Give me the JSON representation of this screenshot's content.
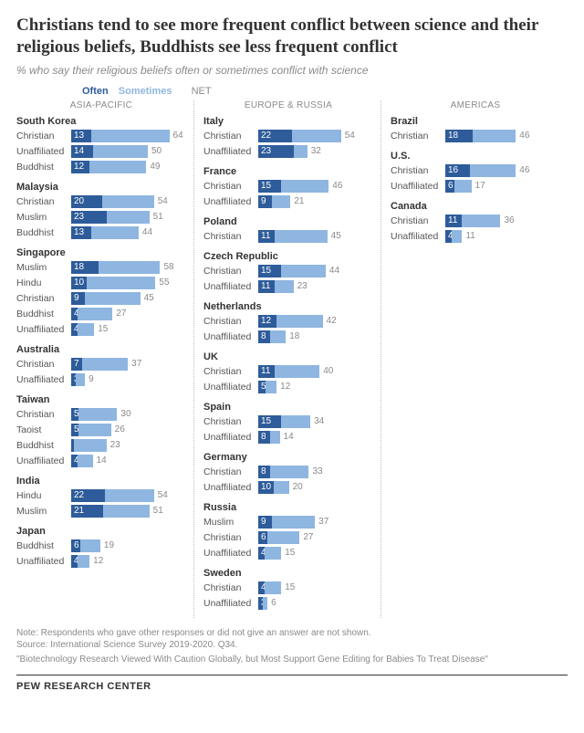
{
  "title": "Christians tend to see more frequent conflict between science and their religious beliefs, Buddhists see less frequent conflict",
  "subtitle": "% who say their religious beliefs often or sometimes conflict with science",
  "legend": {
    "often": "Often",
    "sometimes": "Sometimes",
    "net": "NET"
  },
  "colors": {
    "often": "#2e5c9a",
    "sometimes": "#8fb6e0",
    "net_text": "#8a8a8a",
    "background": "#ffffff"
  },
  "regions": [
    {
      "name": "ASIA-PACIFIC",
      "countries": [
        {
          "name": "South Korea",
          "rows": [
            {
              "label": "Christian",
              "often": 13,
              "sometimes": 51,
              "net": 64
            },
            {
              "label": "Unaffiliated",
              "often": 14,
              "sometimes": 36,
              "net": 50
            },
            {
              "label": "Buddhist",
              "often": 12,
              "sometimes": 37,
              "net": 49
            }
          ]
        },
        {
          "name": "Malaysia",
          "rows": [
            {
              "label": "Christian",
              "often": 20,
              "sometimes": 34,
              "net": 54
            },
            {
              "label": "Muslim",
              "often": 23,
              "sometimes": 28,
              "net": 51
            },
            {
              "label": "Buddhist",
              "often": 13,
              "sometimes": 31,
              "net": 44
            }
          ]
        },
        {
          "name": "Singapore",
          "rows": [
            {
              "label": "Muslim",
              "often": 18,
              "sometimes": 40,
              "net": 58
            },
            {
              "label": "Hindu",
              "often": 10,
              "sometimes": 45,
              "net": 55
            },
            {
              "label": "Christian",
              "often": 9,
              "sometimes": 36,
              "net": 45
            },
            {
              "label": "Buddhist",
              "often": 4,
              "sometimes": 23,
              "net": 27
            },
            {
              "label": "Unaffiliated",
              "often": 4,
              "sometimes": 11,
              "net": 15
            }
          ]
        },
        {
          "name": "Australia",
          "rows": [
            {
              "label": "Christian",
              "often": 7,
              "sometimes": 30,
              "net": 37
            },
            {
              "label": "Unaffiliated",
              "often": 3,
              "sometimes": 6,
              "net": 9
            }
          ]
        },
        {
          "name": "Taiwan",
          "rows": [
            {
              "label": "Christian",
              "often": 5,
              "sometimes": 25,
              "net": 30
            },
            {
              "label": "Taoist",
              "often": 5,
              "sometimes": 21,
              "net": 26
            },
            {
              "label": "Buddhist",
              "often": 2,
              "sometimes": 21,
              "net": 23
            },
            {
              "label": "Unaffiliated",
              "often": 4,
              "sometimes": 10,
              "net": 14
            }
          ]
        },
        {
          "name": "India",
          "rows": [
            {
              "label": "Hindu",
              "often": 22,
              "sometimes": 32,
              "net": 54
            },
            {
              "label": "Muslim",
              "often": 21,
              "sometimes": 30,
              "net": 51
            }
          ]
        },
        {
          "name": "Japan",
          "rows": [
            {
              "label": "Buddhist",
              "often": 6,
              "sometimes": 13,
              "net": 19
            },
            {
              "label": "Unaffiliated",
              "often": 4,
              "sometimes": 8,
              "net": 12
            }
          ]
        }
      ]
    },
    {
      "name": "EUROPE & RUSSIA",
      "countries": [
        {
          "name": "Italy",
          "rows": [
            {
              "label": "Christian",
              "often": 22,
              "sometimes": 32,
              "net": 54
            },
            {
              "label": "Unaffiliated",
              "often": 23,
              "sometimes": 9,
              "net": 32
            }
          ]
        },
        {
          "name": "France",
          "rows": [
            {
              "label": "Christian",
              "often": 15,
              "sometimes": 31,
              "net": 46
            },
            {
              "label": "Unaffiliated",
              "often": 9,
              "sometimes": 12,
              "net": 21
            }
          ]
        },
        {
          "name": "Poland",
          "rows": [
            {
              "label": "Christian",
              "often": 11,
              "sometimes": 34,
              "net": 45
            }
          ]
        },
        {
          "name": "Czech Republic",
          "rows": [
            {
              "label": "Christian",
              "often": 15,
              "sometimes": 29,
              "net": 44
            },
            {
              "label": "Unaffiliated",
              "often": 11,
              "sometimes": 12,
              "net": 23
            }
          ]
        },
        {
          "name": "Netherlands",
          "rows": [
            {
              "label": "Christian",
              "often": 12,
              "sometimes": 30,
              "net": 42
            },
            {
              "label": "Unaffiliated",
              "often": 8,
              "sometimes": 10,
              "net": 18
            }
          ]
        },
        {
          "name": "UK",
          "rows": [
            {
              "label": "Christian",
              "often": 11,
              "sometimes": 29,
              "net": 40
            },
            {
              "label": "Unaffiliated",
              "often": 5,
              "sometimes": 7,
              "net": 12
            }
          ]
        },
        {
          "name": "Spain",
          "rows": [
            {
              "label": "Christian",
              "often": 15,
              "sometimes": 19,
              "net": 34
            },
            {
              "label": "Unaffiliated",
              "often": 8,
              "sometimes": 6,
              "net": 14
            }
          ]
        },
        {
          "name": "Germany",
          "rows": [
            {
              "label": "Christian",
              "often": 8,
              "sometimes": 25,
              "net": 33
            },
            {
              "label": "Unaffiliated",
              "often": 10,
              "sometimes": 10,
              "net": 20
            }
          ]
        },
        {
          "name": "Russia",
          "rows": [
            {
              "label": "Muslim",
              "often": 9,
              "sometimes": 28,
              "net": 37
            },
            {
              "label": "Christian",
              "often": 6,
              "sometimes": 21,
              "net": 27
            },
            {
              "label": "Unaffiliated",
              "often": 4,
              "sometimes": 11,
              "net": 15
            }
          ]
        },
        {
          "name": "Sweden",
          "rows": [
            {
              "label": "Christian",
              "often": 4,
              "sometimes": 11,
              "net": 15
            },
            {
              "label": "Unaffiliated",
              "often": 3,
              "sometimes": 3,
              "net": 6
            }
          ]
        }
      ]
    },
    {
      "name": "AMERICAS",
      "countries": [
        {
          "name": "Brazil",
          "rows": [
            {
              "label": "Christian",
              "often": 18,
              "sometimes": 28,
              "net": 46
            }
          ]
        },
        {
          "name": "U.S.",
          "rows": [
            {
              "label": "Christian",
              "often": 16,
              "sometimes": 30,
              "net": 46
            },
            {
              "label": "Unaffiliated",
              "often": 6,
              "sometimes": 11,
              "net": 17
            }
          ]
        },
        {
          "name": "Canada",
          "rows": [
            {
              "label": "Christian",
              "often": 11,
              "sometimes": 25,
              "net": 36
            },
            {
              "label": "Unaffiliated",
              "often": 4,
              "sometimes": 7,
              "net": 11
            }
          ]
        }
      ]
    }
  ],
  "chart": {
    "scale_max": 75
  },
  "footnotes": {
    "note": "Note: Respondents who gave other responses or did not give an answer are not shown.",
    "source": "Source: International Science Survey 2019-2020. Q34.",
    "quote": "\"Biotechnology Research Viewed With Caution Globally, but Most Support Gene Editing for Babies To Treat Disease\""
  },
  "logo": "PEW RESEARCH CENTER"
}
